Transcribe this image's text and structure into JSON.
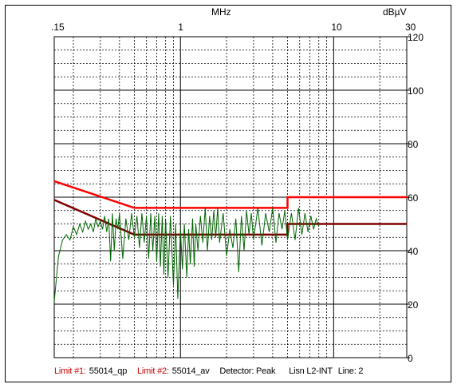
{
  "chart_data": {
    "type": "line",
    "x_unit_label": "MHz",
    "y_unit_label": "dBµV",
    "x_scale": "log",
    "xlim": [
      0.15,
      30
    ],
    "ylim": [
      0,
      120
    ],
    "x_tick_labels": [
      {
        "value": 0.15,
        "label": ".15"
      },
      {
        "value": 1,
        "label": "1"
      },
      {
        "value": 10,
        "label": "10"
      },
      {
        "value": 30,
        "label": "30"
      }
    ],
    "y_tick_labels": [
      {
        "value": 120,
        "label": "120"
      },
      {
        "value": 100,
        "label": "100"
      },
      {
        "value": 80,
        "label": "80"
      },
      {
        "value": 60,
        "label": "60"
      },
      {
        "value": 40,
        "label": "40"
      },
      {
        "value": 20,
        "label": "20"
      },
      {
        "value": 0,
        "label": "0"
      }
    ],
    "grid": true,
    "series": [
      {
        "name": "55014_qp",
        "role": "Limit #1",
        "color": "#ff0000",
        "x": [
          0.15,
          0.5,
          0.5,
          5,
          5,
          30
        ],
        "y": [
          66,
          56,
          56,
          56,
          60,
          60
        ]
      },
      {
        "name": "55014_av",
        "role": "Limit #2",
        "color": "#800000",
        "x": [
          0.15,
          0.5,
          0.5,
          5,
          5,
          30
        ],
        "y": [
          59,
          46,
          46,
          46,
          50,
          50
        ]
      },
      {
        "name": "Peak",
        "color": "#006400",
        "x": [
          0.15,
          0.16,
          0.17,
          0.18,
          0.19,
          0.2,
          0.21,
          0.22,
          0.23,
          0.24,
          0.25,
          0.26,
          0.27,
          0.28,
          0.29,
          0.3,
          0.31,
          0.32,
          0.33,
          0.34,
          0.35,
          0.36,
          0.37,
          0.38,
          0.39,
          0.4,
          0.42,
          0.44,
          0.46,
          0.48,
          0.5,
          0.52,
          0.54,
          0.56,
          0.58,
          0.6,
          0.62,
          0.64,
          0.66,
          0.68,
          0.7,
          0.72,
          0.74,
          0.76,
          0.78,
          0.8,
          0.83,
          0.86,
          0.9,
          0.93,
          0.96,
          1.0,
          1.03,
          1.06,
          1.1,
          1.13,
          1.16,
          1.2,
          1.23,
          1.26,
          1.3,
          1.35,
          1.4,
          1.45,
          1.5,
          1.55,
          1.6,
          1.65,
          1.7,
          1.75,
          1.8,
          1.9,
          2.0,
          2.1,
          2.2,
          2.3,
          2.4,
          2.5,
          2.6,
          2.7,
          2.8,
          2.9,
          3.0,
          3.2,
          3.4,
          3.6,
          3.8,
          4.0,
          4.2,
          4.4,
          4.6,
          4.8,
          5.0,
          5.3,
          5.6,
          5.9,
          6.2,
          6.5,
          6.8,
          7.1,
          7.4,
          7.7,
          8.0
        ],
        "y": [
          21,
          38,
          44,
          46,
          44,
          49,
          46,
          50,
          47,
          51,
          48,
          50,
          47,
          52,
          49,
          51,
          48,
          53,
          47,
          52,
          36,
          54,
          40,
          52,
          48,
          54,
          37,
          52,
          44,
          54,
          45,
          53,
          41,
          54,
          43,
          53,
          37,
          54,
          40,
          53,
          36,
          54,
          34,
          53,
          31,
          52,
          30,
          53,
          27,
          50,
          22,
          48,
          33,
          50,
          30,
          48,
          35,
          52,
          34,
          50,
          40,
          53,
          43,
          56,
          40,
          53,
          44,
          55,
          45,
          56,
          43,
          54,
          38,
          48,
          41,
          52,
          32,
          53,
          40,
          55,
          46,
          54,
          44,
          56,
          42,
          54,
          47,
          56,
          43,
          54,
          48,
          55,
          44,
          54,
          44,
          56,
          46,
          54,
          47,
          53,
          48,
          52,
          49
        ]
      }
    ],
    "footer": {
      "limit1_label": "Limit #1:",
      "limit1_value": "55014_qp",
      "limit2_label": "Limit #2:",
      "limit2_value": "55014_av",
      "detector": "Detector: Peak",
      "lisn": "Lisn L2-INT",
      "line": "Line: 2"
    }
  }
}
